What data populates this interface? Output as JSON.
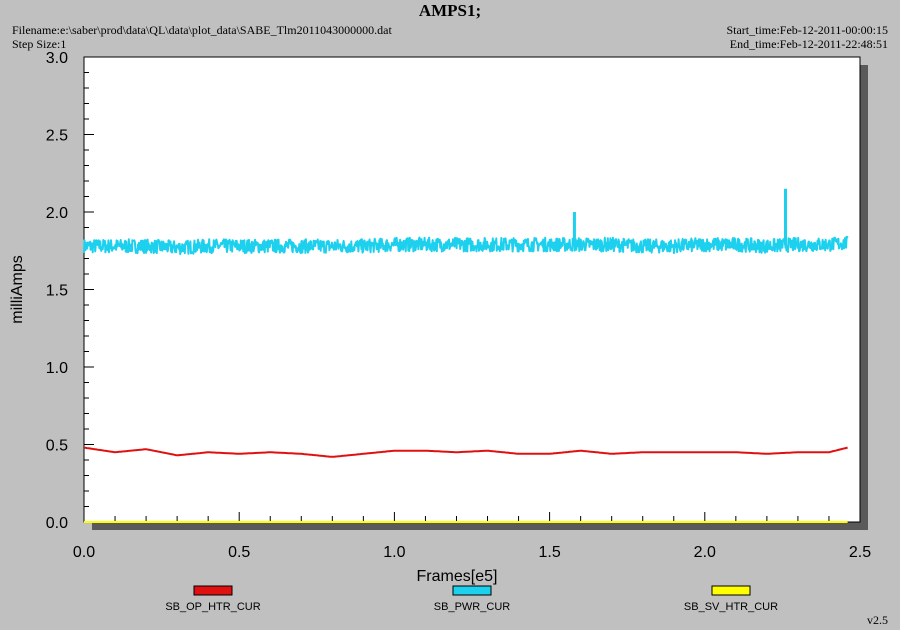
{
  "header": {
    "title": "AMPS1;",
    "filename": "Filename:e:\\saber\\prod\\data\\QL\\data\\plot_data\\SABE_Tlm2011043000000.dat",
    "step_size": "Step Size:1",
    "start_time": "Start_time:Feb-12-2011-00:00:15",
    "end_time": "End_time:Feb-12-2011-22:48:51"
  },
  "footer": {
    "version": "v2.5"
  },
  "colors": {
    "SB_OP_HTR_CUR": "#e01010",
    "SB_PWR_CUR": "#1cd0ee",
    "SB_SV_HTR_CUR": "#ffff00"
  },
  "chart_data": {
    "type": "line",
    "xlabel": "Frames[e5]",
    "ylabel": "milliAmps",
    "xlim": [
      0.0,
      2.5
    ],
    "ylim": [
      0.0,
      3.0
    ],
    "xticks": [
      "0.0",
      "0.5",
      "1.0",
      "1.5",
      "2.0",
      "2.5"
    ],
    "yticks": [
      "0.0",
      "0.5",
      "1.0",
      "1.5",
      "2.0",
      "2.5",
      "3.0"
    ],
    "grid": false,
    "legend_position": "bottom",
    "x": [
      0.0,
      0.1,
      0.2,
      0.3,
      0.4,
      0.5,
      0.6,
      0.7,
      0.8,
      0.9,
      1.0,
      1.1,
      1.2,
      1.3,
      1.4,
      1.5,
      1.6,
      1.7,
      1.8,
      1.9,
      2.0,
      2.1,
      2.2,
      2.3,
      2.4,
      2.46
    ],
    "series": [
      {
        "name": "SB_OP_HTR_CUR",
        "values": [
          0.48,
          0.45,
          0.47,
          0.43,
          0.45,
          0.44,
          0.45,
          0.44,
          0.42,
          0.44,
          0.46,
          0.46,
          0.45,
          0.46,
          0.44,
          0.44,
          0.46,
          0.44,
          0.45,
          0.45,
          0.45,
          0.45,
          0.44,
          0.45,
          0.45,
          0.48
        ]
      },
      {
        "name": "SB_PWR_CUR",
        "values": [
          1.78,
          1.78,
          1.78,
          1.77,
          1.78,
          1.78,
          1.78,
          1.78,
          1.78,
          1.78,
          1.79,
          1.79,
          1.79,
          1.79,
          1.79,
          1.79,
          1.79,
          1.79,
          1.78,
          1.78,
          1.79,
          1.79,
          1.78,
          1.79,
          1.79,
          1.8
        ]
      },
      {
        "name": "SB_SV_HTR_CUR",
        "values": [
          0.0,
          0.0,
          0.0,
          0.0,
          0.0,
          0.0,
          0.0,
          0.0,
          0.0,
          0.0,
          0.0,
          0.0,
          0.0,
          0.0,
          0.0,
          0.0,
          0.0,
          0.0,
          0.0,
          0.0,
          0.0,
          0.0,
          0.0,
          0.0,
          0.0,
          0.0
        ]
      }
    ],
    "annotations": [
      {
        "series": "SB_PWR_CUR",
        "x": 2.26,
        "y": 2.15,
        "note": "spike"
      },
      {
        "series": "SB_PWR_CUR",
        "x": 1.58,
        "y": 2.0,
        "note": "spike"
      }
    ]
  }
}
